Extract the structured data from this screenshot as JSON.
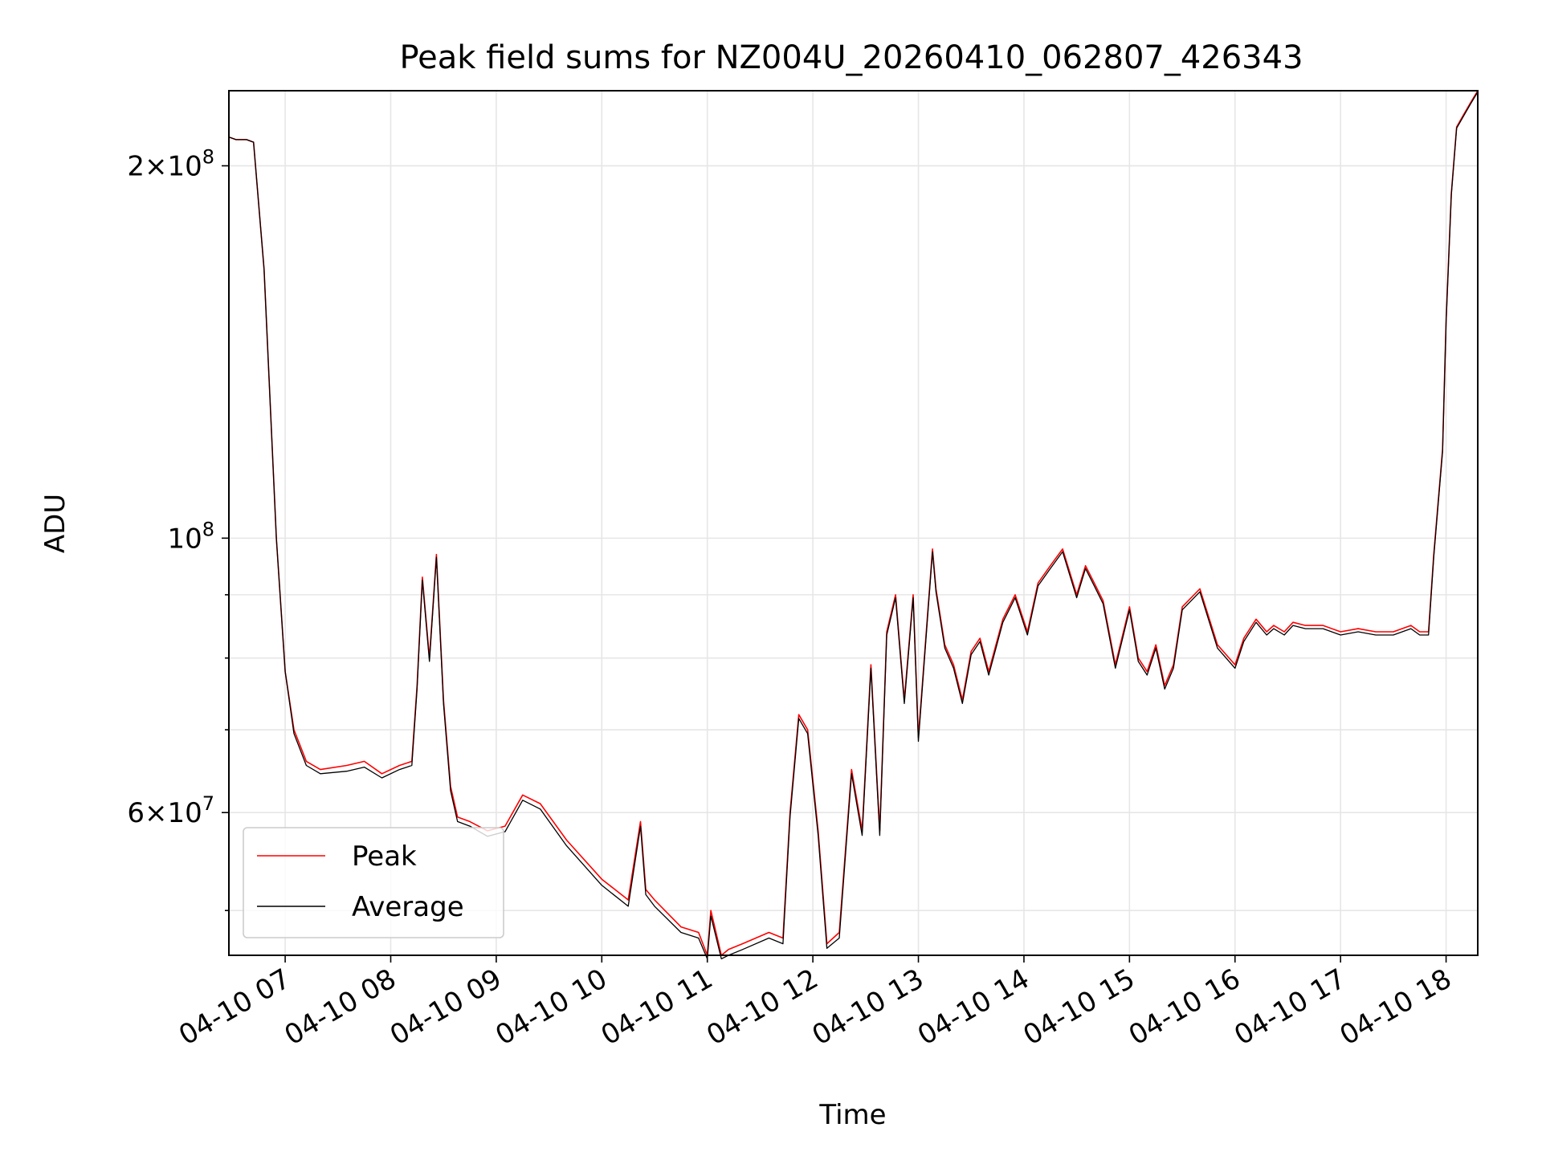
{
  "chart_data": {
    "type": "line",
    "title": "Peak field sums for NZ004U_20260410_062807_426343",
    "xlabel": "Time",
    "ylabel": "ADU",
    "yscale": "log",
    "xlim": [
      "04-10 06:28",
      "04-10 18:18"
    ],
    "ylim": [
      46000000.0,
      230000000.0
    ],
    "grid": true,
    "legend_position": "lower-left",
    "x_ticks": [
      {
        "value": "04-10 07:00",
        "label": "04-10 07"
      },
      {
        "value": "04-10 08:00",
        "label": "04-10 08"
      },
      {
        "value": "04-10 09:00",
        "label": "04-10 09"
      },
      {
        "value": "04-10 10:00",
        "label": "04-10 10"
      },
      {
        "value": "04-10 11:00",
        "label": "04-10 11"
      },
      {
        "value": "04-10 12:00",
        "label": "04-10 12"
      },
      {
        "value": "04-10 13:00",
        "label": "04-10 13"
      },
      {
        "value": "04-10 14:00",
        "label": "04-10 14"
      },
      {
        "value": "04-10 15:00",
        "label": "04-10 15"
      },
      {
        "value": "04-10 16:00",
        "label": "04-10 16"
      },
      {
        "value": "04-10 17:00",
        "label": "04-10 17"
      },
      {
        "value": "04-10 18:00",
        "label": "04-10 18"
      }
    ],
    "y_ticks_major": [
      {
        "value": 60000000,
        "mant": "6",
        "base": "10",
        "exp": "7"
      },
      {
        "value": 100000000,
        "mant": "",
        "base": "10",
        "exp": "8"
      },
      {
        "value": 200000000,
        "mant": "2",
        "base": "10",
        "exp": "8"
      }
    ],
    "y_ticks_minor": [
      50000000,
      70000000,
      80000000,
      90000000
    ],
    "series": [
      {
        "name": "Peak",
        "color": "#ff0000",
        "x": [
          "04-10 06:28",
          "04-10 06:32",
          "04-10 06:38",
          "04-10 06:42",
          "04-10 06:48",
          "04-10 06:55",
          "04-10 07:00",
          "04-10 07:05",
          "04-10 07:12",
          "04-10 07:20",
          "04-10 07:35",
          "04-10 07:45",
          "04-10 07:55",
          "04-10 08:05",
          "04-10 08:12",
          "04-10 08:15",
          "04-10 08:18",
          "04-10 08:22",
          "04-10 08:26",
          "04-10 08:30",
          "04-10 08:34",
          "04-10 08:38",
          "04-10 08:45",
          "04-10 08:55",
          "04-10 09:05",
          "04-10 09:15",
          "04-10 09:25",
          "04-10 09:40",
          "04-10 10:00",
          "04-10 10:15",
          "04-10 10:22",
          "04-10 10:25",
          "04-10 10:30",
          "04-10 10:45",
          "04-10 10:55",
          "04-10 11:00",
          "04-10 11:02",
          "04-10 11:08",
          "04-10 11:12",
          "04-10 11:20",
          "04-10 11:35",
          "04-10 11:43",
          "04-10 11:47",
          "04-10 11:52",
          "04-10 11:57",
          "04-10 12:03",
          "04-10 12:08",
          "04-10 12:15",
          "04-10 12:22",
          "04-10 12:28",
          "04-10 12:33",
          "04-10 12:38",
          "04-10 12:42",
          "04-10 12:47",
          "04-10 12:52",
          "04-10 12:57",
          "04-10 13:00",
          "04-10 13:05",
          "04-10 13:08",
          "04-10 13:10",
          "04-10 13:15",
          "04-10 13:20",
          "04-10 13:25",
          "04-10 13:30",
          "04-10 13:35",
          "04-10 13:40",
          "04-10 13:48",
          "04-10 13:55",
          "04-10 14:02",
          "04-10 14:08",
          "04-10 14:15",
          "04-10 14:22",
          "04-10 14:30",
          "04-10 14:35",
          "04-10 14:40",
          "04-10 14:45",
          "04-10 14:52",
          "04-10 15:00",
          "04-10 15:05",
          "04-10 15:10",
          "04-10 15:15",
          "04-10 15:20",
          "04-10 15:25",
          "04-10 15:30",
          "04-10 15:40",
          "04-10 15:50",
          "04-10 16:00",
          "04-10 16:05",
          "04-10 16:12",
          "04-10 16:18",
          "04-10 16:22",
          "04-10 16:28",
          "04-10 16:33",
          "04-10 16:40",
          "04-10 16:50",
          "04-10 17:00",
          "04-10 17:10",
          "04-10 17:20",
          "04-10 17:30",
          "04-10 17:40",
          "04-10 17:45",
          "04-10 17:50",
          "04-10 17:53",
          "04-10 17:58",
          "04-10 18:00",
          "04-10 18:03",
          "04-10 18:06",
          "04-10 18:10",
          "04-10 18:14",
          "04-10 18:18"
        ],
        "y": [
          211000000,
          210000000,
          210000000,
          209000000,
          165000000,
          100000000,
          78000000,
          70000000,
          66000000,
          65000000,
          65500000,
          66000000,
          64500000,
          65500000,
          66000000,
          76000000,
          93000000,
          80000000,
          97000000,
          74000000,
          63000000,
          59500000,
          59000000,
          58000000,
          58500000,
          62000000,
          61000000,
          57000000,
          53000000,
          51000000,
          59000000,
          52000000,
          51000000,
          48500000,
          48000000,
          46000000,
          50000000,
          46000000,
          46500000,
          47000000,
          48000000,
          47500000,
          60000000,
          72000000,
          70000000,
          58000000,
          47000000,
          48000000,
          65000000,
          58000000,
          79000000,
          58000000,
          84000000,
          90000000,
          74000000,
          90000000,
          69000000,
          86000000,
          98000000,
          91000000,
          82000000,
          79000000,
          74000000,
          81000000,
          83000000,
          78000000,
          86000000,
          90000000,
          84000000,
          92000000,
          95000000,
          98000000,
          90000000,
          95000000,
          92000000,
          89000000,
          79000000,
          88000000,
          80000000,
          78000000,
          82000000,
          76000000,
          79000000,
          88000000,
          91000000,
          82000000,
          79000000,
          83000000,
          86000000,
          84000000,
          85000000,
          84000000,
          85500000,
          85000000,
          85000000,
          84000000,
          84500000,
          84000000,
          84000000,
          85000000,
          84000000,
          84000000,
          97000000,
          118000000,
          150000000,
          190000000,
          215000000,
          220000000,
          225000000,
          230000000
        ]
      },
      {
        "name": "Average",
        "color": "#000000",
        "x": [
          "04-10 06:28",
          "04-10 06:32",
          "04-10 06:38",
          "04-10 06:42",
          "04-10 06:48",
          "04-10 06:55",
          "04-10 07:00",
          "04-10 07:05",
          "04-10 07:12",
          "04-10 07:20",
          "04-10 07:35",
          "04-10 07:45",
          "04-10 07:55",
          "04-10 08:05",
          "04-10 08:12",
          "04-10 08:15",
          "04-10 08:18",
          "04-10 08:22",
          "04-10 08:26",
          "04-10 08:30",
          "04-10 08:34",
          "04-10 08:38",
          "04-10 08:45",
          "04-10 08:55",
          "04-10 09:05",
          "04-10 09:15",
          "04-10 09:25",
          "04-10 09:40",
          "04-10 10:00",
          "04-10 10:15",
          "04-10 10:22",
          "04-10 10:25",
          "04-10 10:30",
          "04-10 10:45",
          "04-10 10:55",
          "04-10 11:00",
          "04-10 11:02",
          "04-10 11:08",
          "04-10 11:12",
          "04-10 11:20",
          "04-10 11:35",
          "04-10 11:43",
          "04-10 11:47",
          "04-10 11:52",
          "04-10 11:57",
          "04-10 12:03",
          "04-10 12:08",
          "04-10 12:15",
          "04-10 12:22",
          "04-10 12:28",
          "04-10 12:33",
          "04-10 12:38",
          "04-10 12:42",
          "04-10 12:47",
          "04-10 12:52",
          "04-10 12:57",
          "04-10 13:00",
          "04-10 13:05",
          "04-10 13:08",
          "04-10 13:10",
          "04-10 13:15",
          "04-10 13:20",
          "04-10 13:25",
          "04-10 13:30",
          "04-10 13:35",
          "04-10 13:40",
          "04-10 13:48",
          "04-10 13:55",
          "04-10 14:02",
          "04-10 14:08",
          "04-10 14:15",
          "04-10 14:22",
          "04-10 14:30",
          "04-10 14:35",
          "04-10 14:40",
          "04-10 14:45",
          "04-10 14:52",
          "04-10 15:00",
          "04-10 15:05",
          "04-10 15:10",
          "04-10 15:15",
          "04-10 15:20",
          "04-10 15:25",
          "04-10 15:30",
          "04-10 15:40",
          "04-10 15:50",
          "04-10 16:00",
          "04-10 16:05",
          "04-10 16:12",
          "04-10 16:18",
          "04-10 16:22",
          "04-10 16:28",
          "04-10 16:33",
          "04-10 16:40",
          "04-10 16:50",
          "04-10 17:00",
          "04-10 17:10",
          "04-10 17:20",
          "04-10 17:30",
          "04-10 17:40",
          "04-10 17:45",
          "04-10 17:50",
          "04-10 17:53",
          "04-10 17:58",
          "04-10 18:00",
          "04-10 18:03",
          "04-10 18:06",
          "04-10 18:10",
          "04-10 18:14",
          "04-10 18:18"
        ],
        "y": [
          211000000,
          210000000,
          210000000,
          209000000,
          165000000,
          100000000,
          78000000,
          69500000,
          65500000,
          64500000,
          64800000,
          65300000,
          64000000,
          65000000,
          65500000,
          75500000,
          92500000,
          79500000,
          96500000,
          73500000,
          62500000,
          59000000,
          58500000,
          57400000,
          57900000,
          61400000,
          60400000,
          56400000,
          52400000,
          50400000,
          58500000,
          51500000,
          50400000,
          48000000,
          47500000,
          45700000,
          49500000,
          45700000,
          46000000,
          46500000,
          47500000,
          47000000,
          59500000,
          71500000,
          69500000,
          57500000,
          46600000,
          47500000,
          64500000,
          57500000,
          78500000,
          57500000,
          83500000,
          89500000,
          73500000,
          89500000,
          68500000,
          85500000,
          97500000,
          90500000,
          81500000,
          78500000,
          73500000,
          80500000,
          82500000,
          77500000,
          85500000,
          89500000,
          83500000,
          91500000,
          94500000,
          97500000,
          89500000,
          94500000,
          91500000,
          88500000,
          78500000,
          87500000,
          79500000,
          77500000,
          81500000,
          75500000,
          78500000,
          87500000,
          90500000,
          81500000,
          78500000,
          82500000,
          85500000,
          83500000,
          84500000,
          83500000,
          85000000,
          84500000,
          84500000,
          83500000,
          84000000,
          83500000,
          83500000,
          84500000,
          83500000,
          83500000,
          96500000,
          117500000,
          149500000,
          189500000,
          214500000,
          219500000,
          224500000,
          229500000
        ]
      }
    ]
  }
}
